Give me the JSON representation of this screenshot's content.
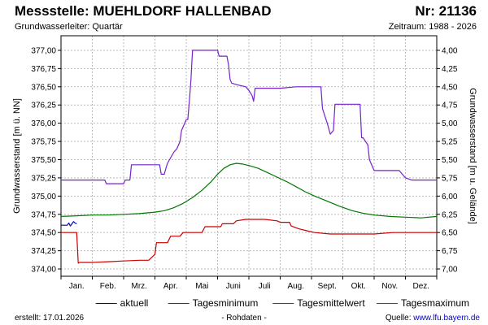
{
  "header": {
    "title": "Messstelle: MUEHLDORF HALLENBAD",
    "number": "Nr: 21136",
    "aquifer": "Grundwasserleiter: Quartär",
    "period": "Zeitraum: 1988 - 2026"
  },
  "footer": {
    "created_label": "erstellt:",
    "created_date": "17.01.2026",
    "data_note": "- Rohdaten -",
    "source_label": "Quelle:",
    "source_link": "www.lfu.bayern.de"
  },
  "colors": {
    "aktuell": "#0000cc",
    "tagesminimum": "#cc0000",
    "tagesmittelwert": "#007700",
    "tagesmaximum": "#7722cc",
    "grid": "#bbbbbb"
  },
  "chart_data": {
    "type": "line",
    "xlabel": "",
    "ylabel": "Grundwasserstand [m ü. NN]",
    "ylabel_right": "Grundwasserstand [m u. Gelände]",
    "x_domain": [
      0,
      12
    ],
    "x_unit": "month",
    "categories": [
      "Jan.",
      "Feb.",
      "Mrz.",
      "Apr.",
      "Mai",
      "Juni",
      "Juli",
      "Aug.",
      "Sept.",
      "Okt.",
      "Nov.",
      "Dez."
    ],
    "ylim": [
      373.9,
      377.2
    ],
    "yticks": [
      "374,00",
      "374,25",
      "374,50",
      "374,75",
      "375,00",
      "375,25",
      "375,50",
      "375,75",
      "376,00",
      "376,25",
      "376,50",
      "376,75",
      "377,00"
    ],
    "ytick_values": [
      374.0,
      374.25,
      374.5,
      374.75,
      375.0,
      375.25,
      375.5,
      375.75,
      376.0,
      376.25,
      376.5,
      376.75,
      377.0
    ],
    "y2ticks": [
      "4,00",
      "4,25",
      "4,50",
      "4,75",
      "5,00",
      "5,25",
      "5,50",
      "5,75",
      "6,00",
      "6,25",
      "6,50",
      "6,75",
      "7,00"
    ],
    "y2tick_values": [
      377.0,
      376.75,
      376.5,
      376.25,
      376.0,
      375.75,
      375.5,
      375.25,
      375.0,
      374.75,
      374.5,
      374.25,
      374.0
    ],
    "grid": true,
    "legend_position": "bottom",
    "series": [
      {
        "name": "aktuell",
        "key": "aktuell",
        "x": [
          0.0,
          0.1,
          0.2,
          0.25,
          0.3,
          0.35,
          0.4,
          0.45,
          0.5
        ],
        "values": [
          374.6,
          374.6,
          374.6,
          374.63,
          374.59,
          374.62,
          374.65,
          374.63,
          374.62
        ]
      },
      {
        "name": "Tagesminimum",
        "key": "tagesminimum",
        "x": [
          0.0,
          0.5,
          0.55,
          0.6,
          1.0,
          1.5,
          2.0,
          2.5,
          2.8,
          3.0,
          3.05,
          3.4,
          3.5,
          3.8,
          3.9,
          4.0,
          4.3,
          4.5,
          4.6,
          4.9,
          5.1,
          5.15,
          5.5,
          5.6,
          5.9,
          6.0,
          6.5,
          6.9,
          7.0,
          7.3,
          7.35,
          7.6,
          7.8,
          8.1,
          8.6,
          9.6,
          10.0,
          10.6,
          12.0
        ],
        "values": [
          374.5,
          374.5,
          374.08,
          374.09,
          374.09,
          374.1,
          374.11,
          374.12,
          374.12,
          374.2,
          374.36,
          374.36,
          374.45,
          374.45,
          374.5,
          374.5,
          374.5,
          374.5,
          374.58,
          374.58,
          374.58,
          374.62,
          374.62,
          374.66,
          374.68,
          374.68,
          374.68,
          374.66,
          374.64,
          374.64,
          374.59,
          374.55,
          374.53,
          374.5,
          374.48,
          374.48,
          374.48,
          374.5,
          374.5
        ]
      },
      {
        "name": "Tagesmittelwert",
        "key": "tagesmittelwert",
        "x": [
          0.0,
          0.5,
          1.0,
          1.5,
          2.0,
          2.5,
          3.0,
          3.3,
          3.6,
          3.9,
          4.2,
          4.5,
          4.8,
          5.0,
          5.2,
          5.4,
          5.6,
          5.8,
          6.0,
          6.3,
          6.6,
          6.9,
          7.2,
          7.5,
          7.8,
          8.1,
          8.5,
          8.9,
          9.3,
          9.7,
          10.0,
          10.5,
          11.0,
          11.5,
          12.0
        ],
        "values": [
          374.72,
          374.73,
          374.74,
          374.74,
          374.75,
          374.76,
          374.78,
          374.8,
          374.84,
          374.9,
          374.98,
          375.08,
          375.2,
          375.3,
          375.38,
          375.43,
          375.45,
          375.44,
          375.42,
          375.38,
          375.32,
          375.26,
          375.2,
          375.13,
          375.06,
          375.0,
          374.93,
          374.86,
          374.8,
          374.76,
          374.74,
          374.72,
          374.71,
          374.7,
          374.72
        ]
      },
      {
        "name": "Tagesmaximum",
        "key": "tagesmaximum",
        "x": [
          0.0,
          0.5,
          1.0,
          1.4,
          1.45,
          1.9,
          2.0,
          2.05,
          2.2,
          2.25,
          3.15,
          3.2,
          3.3,
          3.35,
          3.4,
          3.6,
          3.7,
          3.8,
          3.85,
          4.0,
          4.05,
          4.1,
          4.15,
          4.2,
          5.0,
          5.05,
          5.3,
          5.35,
          5.4,
          5.45,
          5.6,
          5.9,
          6.0,
          6.1,
          6.15,
          6.2,
          6.5,
          7.0,
          7.5,
          8.0,
          8.3,
          8.35,
          8.5,
          8.6,
          8.7,
          8.75,
          9.55,
          9.6,
          9.65,
          9.8,
          9.85,
          9.95,
          10.0,
          10.5,
          10.6,
          10.8,
          10.9,
          11.0,
          11.2,
          11.5,
          12.0
        ],
        "values": [
          375.22,
          375.22,
          375.22,
          375.22,
          375.17,
          375.17,
          375.17,
          375.22,
          375.22,
          375.43,
          375.43,
          375.3,
          375.3,
          375.38,
          375.45,
          375.6,
          375.65,
          375.75,
          375.9,
          376.05,
          376.05,
          376.3,
          376.6,
          377.0,
          377.0,
          376.92,
          376.92,
          376.8,
          376.6,
          376.55,
          376.53,
          376.5,
          376.45,
          376.38,
          376.3,
          376.48,
          376.48,
          376.48,
          376.5,
          376.5,
          376.5,
          376.2,
          376.0,
          375.85,
          375.9,
          376.26,
          376.26,
          375.8,
          375.8,
          375.7,
          375.5,
          375.4,
          375.35,
          375.35,
          375.35,
          375.35,
          375.3,
          375.25,
          375.22,
          375.22,
          375.22
        ]
      }
    ]
  }
}
